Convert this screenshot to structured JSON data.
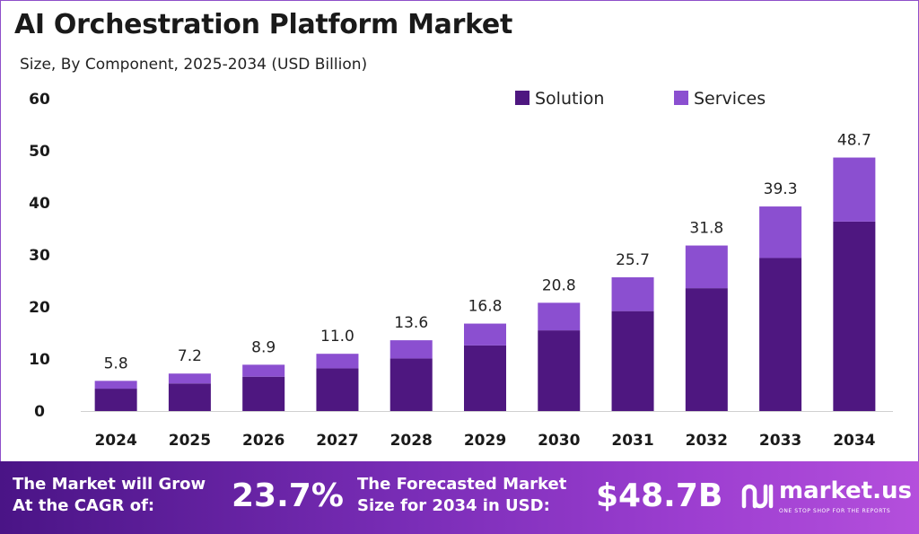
{
  "title": "AI Orchestration Platform Market",
  "subtitle": "Size, By Component, 2025-2034 (USD Billion)",
  "colors": {
    "solution": "#4e1780",
    "services": "#8b4fd0",
    "footer_start": "#4a1486",
    "footer_end": "#b44fdc"
  },
  "chart_data": {
    "type": "bar",
    "stacked": true,
    "categories": [
      "2024",
      "2025",
      "2026",
      "2027",
      "2028",
      "2029",
      "2030",
      "2031",
      "2032",
      "2033",
      "2034"
    ],
    "series": [
      {
        "name": "Solution",
        "values": [
          4.3,
          5.3,
          6.6,
          8.2,
          10.1,
          12.6,
          15.5,
          19.2,
          23.6,
          29.4,
          36.4
        ]
      },
      {
        "name": "Services",
        "values": [
          1.5,
          1.9,
          2.3,
          2.8,
          3.5,
          4.2,
          5.3,
          6.5,
          8.2,
          9.9,
          12.3
        ]
      }
    ],
    "totals": [
      "5.8",
      "7.2",
      "8.9",
      "11.0",
      "13.6",
      "16.8",
      "20.8",
      "25.7",
      "31.8",
      "39.3",
      "48.7"
    ],
    "yticks": [
      "0",
      "10",
      "20",
      "30",
      "40",
      "50",
      "60"
    ],
    "ylim": [
      0,
      60
    ],
    "legend_position": "top-right",
    "grid": false
  },
  "footer": {
    "cagr_line1": "The Market will Grow",
    "cagr_line2": "At the CAGR of:",
    "cagr_value": "23.7%",
    "forecast_line1": "The Forecasted Market",
    "forecast_line2": "Size for 2034 in USD:",
    "forecast_value": "$48.7B",
    "logo_name": "market.us",
    "logo_tagline": "ONE STOP SHOP FOR THE REPORTS"
  }
}
